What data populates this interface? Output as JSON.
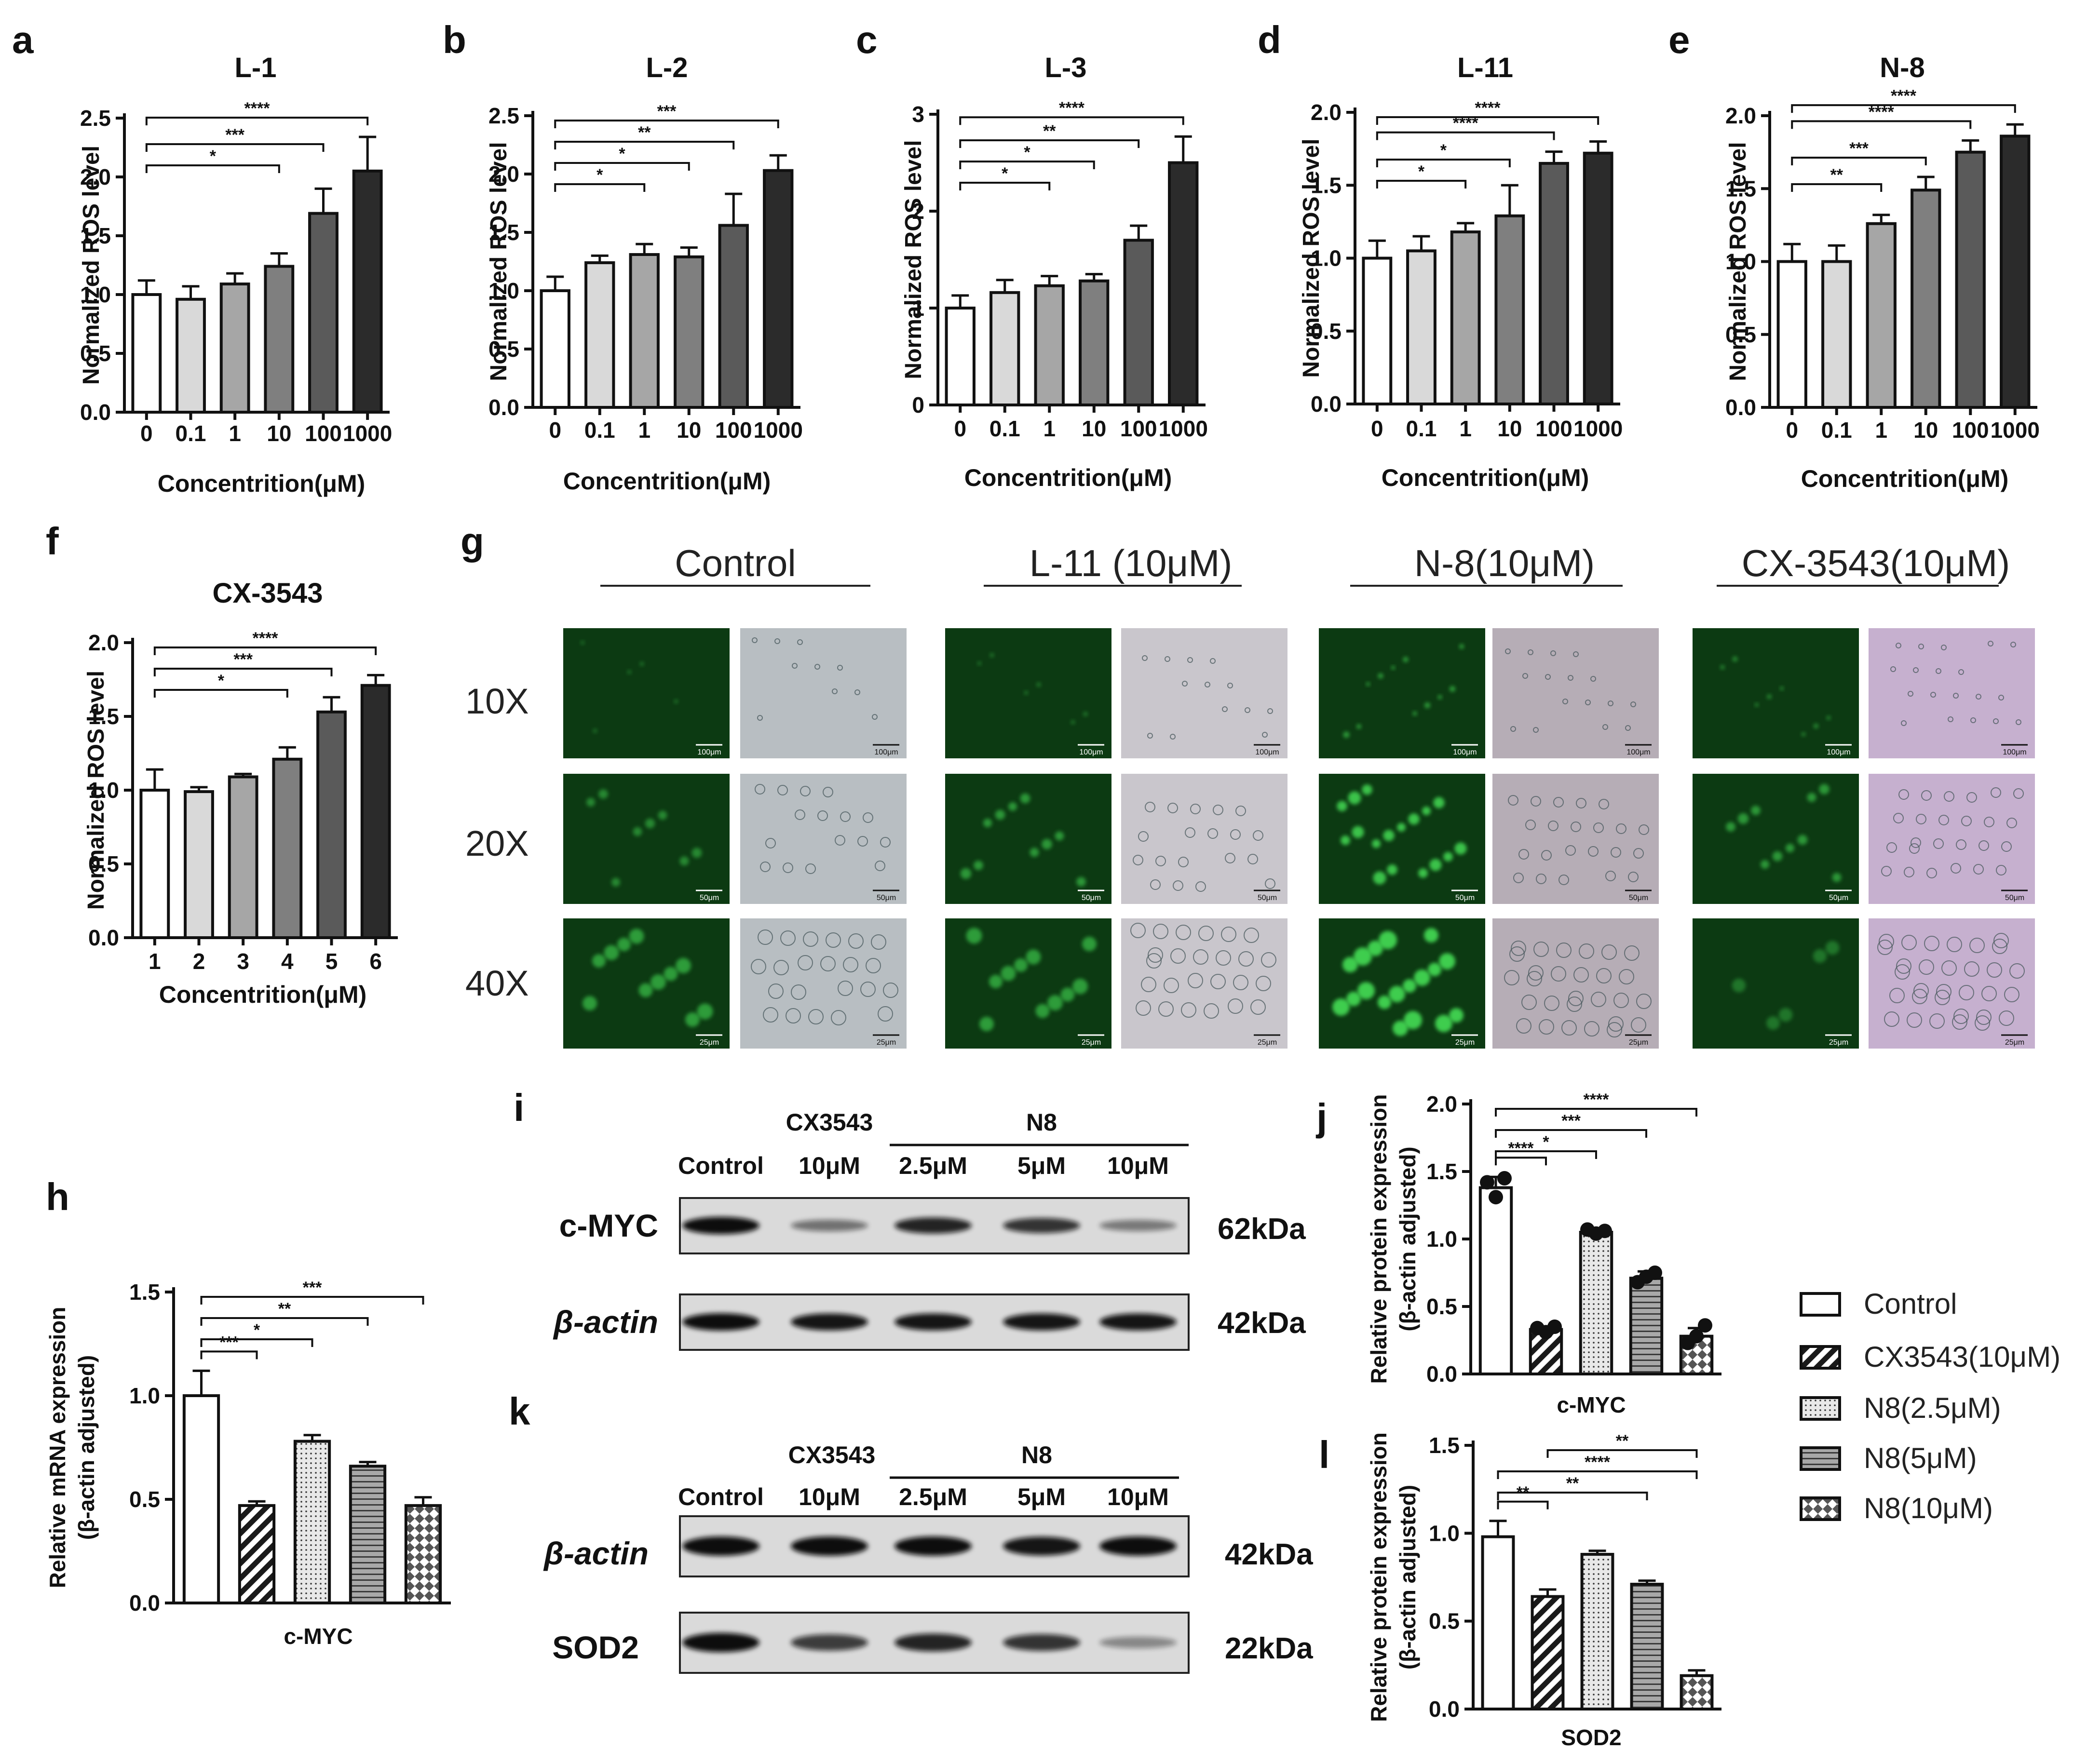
{
  "bar_fill_scale": [
    "#ffffff",
    "#d9d9d9",
    "#a6a6a6",
    "#7f7f7f",
    "#5a5a5a",
    "#2b2b2b"
  ],
  "chart_data": [
    {
      "panel": "a",
      "type": "bar",
      "title": "L-1",
      "xlabel": "Concentrition(μM)",
      "ylabel": "Normalized ROS level",
      "categories": [
        "0",
        "0.1",
        "1",
        "10",
        "100",
        "1000"
      ],
      "values": [
        1.0,
        0.96,
        1.09,
        1.24,
        1.69,
        2.05
      ],
      "errors": [
        0.12,
        0.11,
        0.09,
        0.11,
        0.21,
        0.29
      ],
      "ylim": [
        0,
        2.5
      ],
      "yticks": [
        "0.0",
        "0.5",
        "1.0",
        "1.5",
        "2.0",
        "2.5"
      ],
      "brackets": [
        {
          "from": 0,
          "to": 3,
          "label": "*"
        },
        {
          "from": 0,
          "to": 4,
          "label": "***"
        },
        {
          "from": 0,
          "to": 5,
          "label": "****"
        }
      ]
    },
    {
      "panel": "b",
      "type": "bar",
      "title": "L-2",
      "xlabel": "Concentrition(μM)",
      "ylabel": "Normalized ROS level",
      "categories": [
        "0",
        "0.1",
        "1",
        "10",
        "100",
        "1000"
      ],
      "values": [
        1.0,
        1.24,
        1.31,
        1.29,
        1.56,
        2.03
      ],
      "errors": [
        0.12,
        0.06,
        0.09,
        0.08,
        0.27,
        0.13
      ],
      "ylim": [
        0,
        2.5
      ],
      "yticks": [
        "0.0",
        "0.5",
        "1.0",
        "1.5",
        "2.0",
        "2.5"
      ],
      "brackets": [
        {
          "from": 0,
          "to": 2,
          "label": "*"
        },
        {
          "from": 0,
          "to": 3,
          "label": "*"
        },
        {
          "from": 0,
          "to": 4,
          "label": "**"
        },
        {
          "from": 0,
          "to": 5,
          "label": "***"
        }
      ]
    },
    {
      "panel": "c",
      "type": "bar",
      "title": "L-3",
      "xlabel": "Concentrition(μM)",
      "ylabel": "Normalized ROS level",
      "categories": [
        "0",
        "0.1",
        "1",
        "10",
        "100",
        "1000"
      ],
      "values": [
        1.0,
        1.16,
        1.23,
        1.28,
        1.7,
        2.5
      ],
      "errors": [
        0.13,
        0.13,
        0.1,
        0.07,
        0.15,
        0.27
      ],
      "ylim": [
        0,
        3
      ],
      "yticks": [
        "0",
        "1",
        "2",
        "3"
      ],
      "brackets": [
        {
          "from": 0,
          "to": 2,
          "label": "*"
        },
        {
          "from": 0,
          "to": 3,
          "label": "*"
        },
        {
          "from": 0,
          "to": 4,
          "label": "**"
        },
        {
          "from": 0,
          "to": 5,
          "label": "****"
        }
      ]
    },
    {
      "panel": "d",
      "type": "bar",
      "title": "L-11",
      "xlabel": "Concentrition(μM)",
      "ylabel": "Normalized ROS level",
      "categories": [
        "0",
        "0.1",
        "1",
        "10",
        "100",
        "1000"
      ],
      "values": [
        1.0,
        1.05,
        1.18,
        1.29,
        1.65,
        1.72
      ],
      "errors": [
        0.12,
        0.1,
        0.06,
        0.21,
        0.08,
        0.08
      ],
      "ylim": [
        0,
        2.0
      ],
      "yticks": [
        "0.0",
        "0.5",
        "1.0",
        "1.5",
        "2.0"
      ],
      "brackets": [
        {
          "from": 0,
          "to": 2,
          "label": "*"
        },
        {
          "from": 0,
          "to": 3,
          "label": "*"
        },
        {
          "from": 0,
          "to": 4,
          "label": "****"
        },
        {
          "from": 0,
          "to": 5,
          "label": "****"
        }
      ]
    },
    {
      "panel": "e",
      "type": "bar",
      "title": "N-8",
      "xlabel": "Concentrition(μM)",
      "ylabel": "Normalized ROS level",
      "categories": [
        "0",
        "0.1",
        "1",
        "10",
        "100",
        "1000"
      ],
      "values": [
        1.0,
        1.0,
        1.26,
        1.49,
        1.75,
        1.86
      ],
      "errors": [
        0.12,
        0.11,
        0.06,
        0.09,
        0.08,
        0.08
      ],
      "ylim": [
        0,
        2.0
      ],
      "yticks": [
        "0.0",
        "0.5",
        "1.0",
        "1.5",
        "2.0"
      ],
      "brackets": [
        {
          "from": 0,
          "to": 2,
          "label": "**"
        },
        {
          "from": 0,
          "to": 3,
          "label": "***"
        },
        {
          "from": 0,
          "to": 4,
          "label": "****"
        },
        {
          "from": 0,
          "to": 5,
          "label": "****"
        }
      ]
    },
    {
      "panel": "f",
      "type": "bar",
      "title": "CX-3543",
      "xlabel": "Concentrition(μM)",
      "ylabel": "Normalized ROS level",
      "categories": [
        "1",
        "2",
        "3",
        "4",
        "5",
        "6"
      ],
      "values": [
        1.0,
        0.99,
        1.09,
        1.21,
        1.53,
        1.71
      ],
      "errors": [
        0.14,
        0.03,
        0.02,
        0.08,
        0.1,
        0.07
      ],
      "ylim": [
        0,
        2.0
      ],
      "yticks": [
        "0.0",
        "0.5",
        "1.0",
        "1.5",
        "2.0"
      ],
      "brackets": [
        {
          "from": 0,
          "to": 3,
          "label": "*"
        },
        {
          "from": 0,
          "to": 4,
          "label": "***"
        },
        {
          "from": 0,
          "to": 5,
          "label": "****"
        }
      ]
    },
    {
      "panel": "h",
      "type": "bar",
      "title": "",
      "xlabel": "c-MYC",
      "ylabel": "Relative mRNA expression (β-actin adjusted)",
      "ylabel_lines": [
        "Relative mRNA expression",
        "(β-actin adjusted)"
      ],
      "categories": [
        "Control",
        "CX3543(10μM)",
        "N8(2.5μM)",
        "N8(5μM)",
        "N8(10μM)"
      ],
      "values": [
        1.0,
        0.47,
        0.78,
        0.66,
        0.47
      ],
      "errors": [
        0.12,
        0.02,
        0.03,
        0.02,
        0.04
      ],
      "ylim": [
        0,
        1.5
      ],
      "yticks": [
        "0.0",
        "0.5",
        "1.0",
        "1.5"
      ],
      "brackets": [
        {
          "from": 0,
          "to": 1,
          "label": "***"
        },
        {
          "from": 0,
          "to": 2,
          "label": "*"
        },
        {
          "from": 0,
          "to": 3,
          "label": "**"
        },
        {
          "from": 0,
          "to": 4,
          "label": "***"
        }
      ]
    },
    {
      "panel": "j",
      "type": "bar",
      "title": "",
      "xlabel": "c-MYC",
      "ylabel": "Relative protein expression (β-actin adjusted)",
      "ylabel_lines": [
        "Relative protein expression",
        "(β-actin adjusted)"
      ],
      "categories": [
        "Control",
        "CX3543(10μM)",
        "N8(2.5μM)",
        "N8(5μM)",
        "N8(10μM)"
      ],
      "values": [
        1.38,
        0.33,
        1.05,
        0.71,
        0.28
      ],
      "errors": [
        0.08,
        0.02,
        0.03,
        0.05,
        0.06
      ],
      "points": [
        [
          1.42,
          1.31,
          1.45
        ],
        [
          0.34,
          0.31,
          0.35
        ],
        [
          1.07,
          1.04,
          1.06
        ],
        [
          0.68,
          0.72,
          0.75
        ],
        [
          0.23,
          0.28,
          0.36
        ]
      ],
      "ylim": [
        0,
        2.0
      ],
      "yticks": [
        "0.0",
        "0.5",
        "1.0",
        "1.5",
        "2.0"
      ],
      "brackets": [
        {
          "from": 0,
          "to": 1,
          "label": "****"
        },
        {
          "from": 0,
          "to": 2,
          "label": "*"
        },
        {
          "from": 0,
          "to": 3,
          "label": "***"
        },
        {
          "from": 0,
          "to": 4,
          "label": "****"
        }
      ]
    },
    {
      "panel": "l",
      "type": "bar",
      "title": "",
      "xlabel": "SOD2",
      "ylabel": "Relative protein expression (β-actin adjusted)",
      "ylabel_lines": [
        "Relative protein expression",
        "(β-actin adjusted)"
      ],
      "categories": [
        "Control",
        "CX3543(10μM)",
        "N8(2.5μM)",
        "N8(5μM)",
        "N8(10μM)"
      ],
      "values": [
        0.98,
        0.64,
        0.88,
        0.71,
        0.19
      ],
      "errors": [
        0.09,
        0.04,
        0.02,
        0.02,
        0.03
      ],
      "ylim": [
        0,
        1.5
      ],
      "yticks": [
        "0.0",
        "0.5",
        "1.0",
        "1.5"
      ],
      "brackets": [
        {
          "from": 0,
          "to": 1,
          "label": "**"
        },
        {
          "from": 0,
          "to": 3,
          "label": "**"
        },
        {
          "from": 0,
          "to": 4,
          "label": "****"
        },
        {
          "from": 1,
          "to": 4,
          "label": "**"
        }
      ]
    }
  ],
  "panel_letters": [
    "a",
    "b",
    "c",
    "d",
    "e",
    "f",
    "g",
    "h",
    "i",
    "j",
    "k",
    "l"
  ],
  "legend": {
    "entries": [
      "Control",
      "CX3543(10μM)",
      "N8(2.5μM)",
      "N8(5μM)",
      "N8(10μM)"
    ],
    "patterns": [
      "white",
      "diagonal-stripes",
      "dots",
      "horizontal-stripes",
      "checker"
    ]
  },
  "microscopy": {
    "groups": [
      "Control",
      "L-11 (10μM)",
      "N-8(10μM)",
      "CX-3543(10μM)"
    ],
    "magnifications": [
      "10X",
      "20X",
      "40X"
    ],
    "scale_bars": [
      "100μm",
      "50μm",
      "25μm"
    ],
    "fluorescence_color": "#0c3a12",
    "green_signal": [
      [
        0.1,
        0.3,
        0.5
      ],
      [
        0.15,
        0.45,
        0.5
      ],
      [
        0.5,
        0.9,
        1.0
      ],
      [
        0.3,
        0.45,
        0.1
      ]
    ],
    "brightfield_tints": [
      "#b8bec2",
      "#c9c6cc",
      "#b6adb6",
      "#c6b0cf"
    ]
  },
  "western": {
    "i": {
      "group_labels": [
        "CX3543",
        "N8"
      ],
      "lane_labels": [
        "Control",
        "10μM",
        "2.5μM",
        "5μM",
        "10μM"
      ],
      "rows": [
        {
          "label": "c-MYC",
          "size": "62kDa",
          "intensities": [
            1.0,
            0.35,
            0.85,
            0.75,
            0.3
          ]
        },
        {
          "label": "β-actin",
          "size": "42kDa",
          "intensities": [
            1.0,
            0.95,
            0.95,
            0.95,
            0.95
          ]
        }
      ]
    },
    "k": {
      "group_labels": [
        "CX3543",
        "N8"
      ],
      "lane_labels": [
        "Control",
        "10μM",
        "2.5μM",
        "5μM",
        "10μM"
      ],
      "rows": [
        {
          "label": "β-actin",
          "size": "42kDa",
          "intensities": [
            1.0,
            1.0,
            1.0,
            0.95,
            1.0
          ]
        },
        {
          "label": "SOD2",
          "size": "22kDa",
          "intensities": [
            1.0,
            0.7,
            0.85,
            0.75,
            0.2
          ]
        }
      ]
    }
  }
}
